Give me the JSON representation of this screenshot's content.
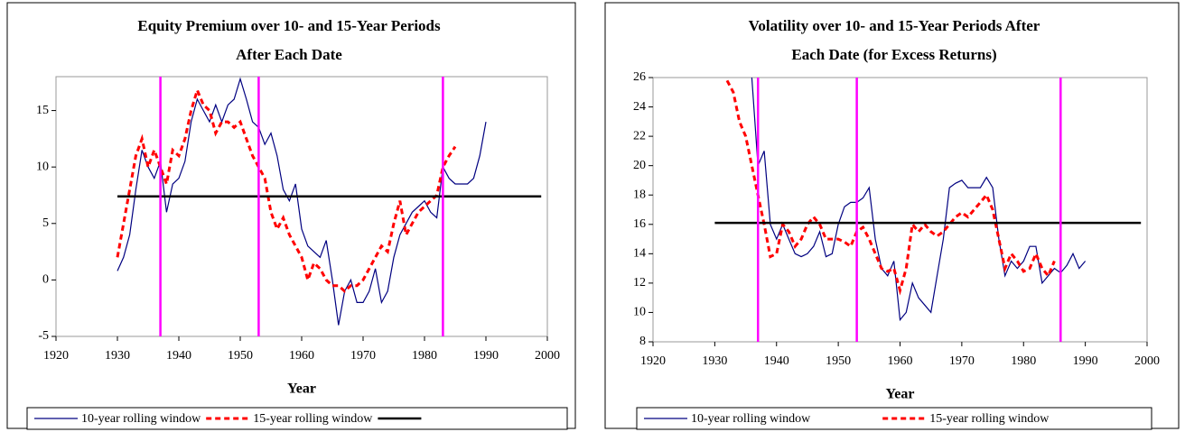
{
  "chart_data": [
    {
      "type": "line",
      "title": [
        "Equity Premium over 10- and 15-Year Periods",
        "After Each Date"
      ],
      "x_label": "Year",
      "xlim": [
        1920,
        2000
      ],
      "xticks": [
        1920,
        1930,
        1940,
        1950,
        1960,
        1970,
        1980,
        1990,
        2000
      ],
      "ylim": [
        -5,
        18
      ],
      "yticks": [
        -5,
        0,
        5,
        10,
        15
      ],
      "vlines": [
        1937,
        1953,
        1983
      ],
      "vline_color": "#ff00ff",
      "series": [
        {
          "name": "10-year rolling window",
          "color": "#000080",
          "dash": false,
          "x": [
            1930,
            1931,
            1932,
            1933,
            1934,
            1935,
            1936,
            1937,
            1938,
            1939,
            1940,
            1941,
            1942,
            1943,
            1944,
            1945,
            1946,
            1947,
            1948,
            1949,
            1950,
            1951,
            1952,
            1953,
            1954,
            1955,
            1956,
            1957,
            1958,
            1959,
            1960,
            1961,
            1962,
            1963,
            1964,
            1965,
            1966,
            1967,
            1968,
            1969,
            1970,
            1971,
            1972,
            1973,
            1974,
            1975,
            1976,
            1977,
            1978,
            1979,
            1980,
            1981,
            1982,
            1983,
            1984,
            1985,
            1986,
            1987,
            1988,
            1989,
            1990
          ],
          "values": [
            0.8,
            2,
            4,
            8,
            11.5,
            10,
            9,
            10.5,
            6,
            8.5,
            9,
            10.5,
            14,
            16,
            15,
            14,
            15.5,
            14,
            15.5,
            16,
            17.8,
            16,
            14,
            13.5,
            12,
            13,
            11,
            8,
            7,
            8.5,
            4.5,
            3,
            2.5,
            2,
            3.5,
            0,
            -4,
            -1,
            0,
            -2,
            -2,
            -1,
            1,
            -2,
            -1,
            2,
            4,
            5,
            6,
            6.5,
            7,
            6,
            5.5,
            10,
            9,
            8.5,
            8.5,
            8.5,
            9,
            11,
            14
          ]
        },
        {
          "name": "15-year rolling window",
          "color": "#ff0000",
          "dash": true,
          "x": [
            1930,
            1931,
            1932,
            1933,
            1934,
            1935,
            1936,
            1937,
            1938,
            1939,
            1940,
            1941,
            1942,
            1943,
            1944,
            1945,
            1946,
            1947,
            1948,
            1949,
            1950,
            1951,
            1952,
            1953,
            1954,
            1955,
            1956,
            1957,
            1958,
            1959,
            1960,
            1961,
            1962,
            1963,
            1964,
            1965,
            1966,
            1967,
            1968,
            1969,
            1970,
            1971,
            1972,
            1973,
            1974,
            1975,
            1976,
            1977,
            1978,
            1979,
            1980,
            1981,
            1982,
            1983,
            1984,
            1985
          ],
          "values": [
            2,
            5,
            8,
            11,
            12.5,
            10,
            11.5,
            10,
            8.5,
            11.5,
            11,
            12.5,
            15,
            16.8,
            15.5,
            15,
            13,
            14,
            14,
            13.5,
            14,
            12.5,
            11,
            10,
            9,
            6,
            4.5,
            5.5,
            4,
            3,
            2,
            0,
            1.5,
            1,
            0,
            -0.5,
            -0.5,
            -1,
            -0.5,
            -0.5,
            0,
            1,
            2,
            3,
            2.5,
            5,
            7,
            4,
            5,
            6,
            6.5,
            7,
            7.5,
            10,
            11,
            11.8
          ]
        },
        {
          "color": "#000000",
          "dash": false,
          "thick": true,
          "x": [
            1930,
            1999
          ],
          "values": [
            7.4,
            7.4
          ]
        }
      ]
    },
    {
      "type": "line",
      "title": [
        "Volatility over 10- and 15-Year Periods After",
        "Each Date (for Excess Returns)"
      ],
      "x_label": "Year",
      "xlim": [
        1920,
        2000
      ],
      "xticks": [
        1920,
        1930,
        1940,
        1950,
        1960,
        1970,
        1980,
        1990,
        2000
      ],
      "ylim": [
        8,
        26
      ],
      "yticks": [
        8,
        10,
        12,
        14,
        16,
        18,
        20,
        22,
        24,
        26
      ],
      "vlines": [
        1937,
        1953,
        1986
      ],
      "vline_color": "#ff00ff",
      "series": [
        {
          "name": "10-year rolling window",
          "color": "#000080",
          "dash": false,
          "x": [
            1936,
            1937,
            1938,
            1939,
            1940,
            1941,
            1942,
            1943,
            1944,
            1945,
            1946,
            1947,
            1948,
            1949,
            1950,
            1951,
            1952,
            1953,
            1954,
            1955,
            1956,
            1957,
            1958,
            1959,
            1960,
            1961,
            1962,
            1963,
            1964,
            1965,
            1966,
            1967,
            1968,
            1969,
            1970,
            1971,
            1972,
            1973,
            1974,
            1975,
            1976,
            1977,
            1978,
            1979,
            1980,
            1981,
            1982,
            1983,
            1984,
            1985,
            1986,
            1987,
            1988,
            1989,
            1990
          ],
          "values": [
            26,
            20,
            21,
            16,
            15,
            16,
            15,
            14,
            13.8,
            14,
            14.5,
            15.5,
            13.8,
            14,
            16,
            17.2,
            17.5,
            17.5,
            17.8,
            18.5,
            15,
            13,
            12.5,
            13.5,
            9.5,
            10,
            12,
            11,
            10.5,
            10,
            12.5,
            15,
            18.5,
            18.8,
            19,
            18.5,
            18.5,
            18.5,
            19.2,
            18.5,
            15,
            12.5,
            13.5,
            13,
            13.5,
            14.5,
            14.5,
            12,
            12.5,
            13,
            12.7,
            13.2,
            14,
            13,
            13.5
          ]
        },
        {
          "name": "15-year rolling window",
          "color": "#ff0000",
          "dash": true,
          "x": [
            1932,
            1933,
            1934,
            1935,
            1936,
            1937,
            1938,
            1939,
            1940,
            1941,
            1942,
            1943,
            1944,
            1945,
            1946,
            1947,
            1948,
            1949,
            1950,
            1951,
            1952,
            1953,
            1954,
            1955,
            1956,
            1957,
            1958,
            1959,
            1960,
            1961,
            1962,
            1963,
            1964,
            1965,
            1966,
            1967,
            1968,
            1969,
            1970,
            1971,
            1972,
            1973,
            1974,
            1975,
            1976,
            1977,
            1978,
            1979,
            1980,
            1981,
            1982,
            1983,
            1984,
            1985
          ],
          "values": [
            25.8,
            25,
            23,
            22,
            20,
            18,
            16,
            13.8,
            14,
            16,
            15.5,
            14.5,
            15,
            16,
            16.5,
            16,
            15,
            15,
            15,
            14.8,
            14.5,
            15.5,
            15.8,
            15,
            14,
            13,
            12.8,
            13,
            11.5,
            13,
            16,
            15.5,
            16,
            15.5,
            15.2,
            15.5,
            16,
            16.5,
            16.8,
            16.5,
            17,
            17.5,
            18,
            17,
            15,
            13,
            14,
            13.5,
            12.8,
            13,
            14,
            13,
            12.5,
            13.5
          ]
        },
        {
          "color": "#000000",
          "dash": false,
          "thick": true,
          "legend": false,
          "x": [
            1930,
            1999
          ],
          "values": [
            16.1,
            16.1
          ]
        }
      ]
    }
  ]
}
